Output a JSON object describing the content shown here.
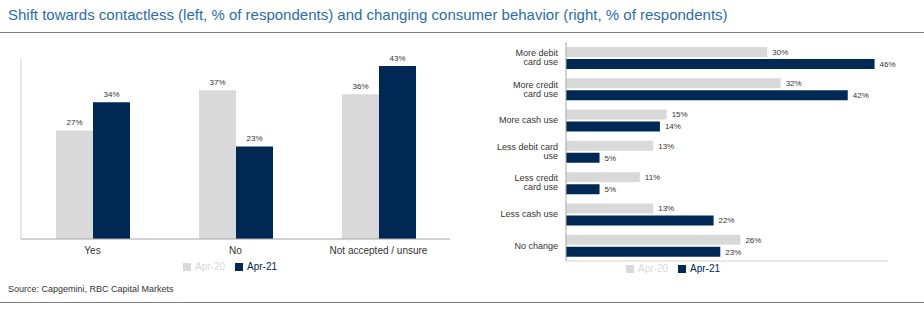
{
  "title": "Shift towards contactless (left, % of respondents) and changing consumer behavior (right, % of respondents)",
  "source": "Source: Capgemini, RBC Capital Markets",
  "chart_data": [
    {
      "type": "bar",
      "categories": [
        "Yes",
        "No",
        "Not accepted / unsure"
      ],
      "series": [
        {
          "name": "Apr-20",
          "color": "#d9d9d9",
          "values": [
            27,
            37,
            36
          ],
          "value_labels": [
            "27%",
            "37%",
            "36%"
          ]
        },
        {
          "name": "Apr-21",
          "color": "#002855",
          "values": [
            34,
            23,
            43
          ],
          "value_labels": [
            "34%",
            "23%",
            "43%"
          ]
        }
      ],
      "ylim": [
        0,
        45
      ],
      "data_labels": true,
      "tick_labels": "x",
      "legend": "bottom"
    },
    {
      "type": "bar",
      "orientation": "horizontal",
      "categories": [
        "More debit card use",
        "More credit card use",
        "More cash use",
        "Less debit card use",
        "Less credit card use",
        "Less cash use",
        "No change"
      ],
      "series": [
        {
          "name": "Apr-20",
          "color": "#d9d9d9",
          "values": [
            30,
            32,
            15,
            13,
            11,
            13,
            26
          ],
          "value_labels": [
            "30%",
            "32%",
            "15%",
            "13%",
            "11%",
            "13%",
            "26%"
          ]
        },
        {
          "name": "Apr-21",
          "color": "#002855",
          "values": [
            46,
            42,
            14,
            5,
            5,
            22,
            23
          ],
          "value_labels": [
            "46%",
            "42%",
            "14%",
            "5%",
            "5%",
            "22%",
            "23%"
          ]
        }
      ],
      "xlim": [
        0,
        48
      ],
      "data_labels": true,
      "tick_labels": "y",
      "legend": "bottom"
    }
  ]
}
